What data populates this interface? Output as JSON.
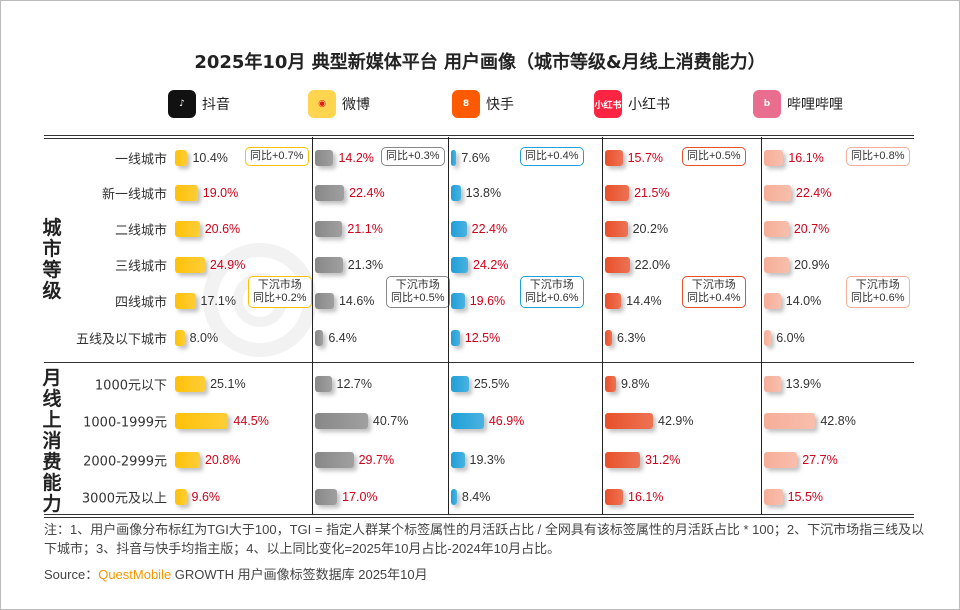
{
  "title": "2025年10月 典型新媒体平台 用户画像（城市等级&月线上消费能力）",
  "watermark": "QUESTMOBILE",
  "chart_data": {
    "type": "bar",
    "orientation": "horizontal",
    "unit": "%",
    "groups": [
      {
        "label": "城市等级",
        "categories": [
          "一线城市",
          "新一线城市",
          "二线城市",
          "三线城市",
          "四线城市",
          "五线及以下城市"
        ]
      },
      {
        "label": "月线上消费能力",
        "categories": [
          "1000元以下",
          "1000-1999元",
          "2000-2999元",
          "3000元及以上"
        ]
      }
    ],
    "series": [
      {
        "name": "抖音",
        "color": "#FFC107",
        "logo": "tiktok-icon",
        "values": [
          10.4,
          19.0,
          20.6,
          24.9,
          17.1,
          8.0,
          25.1,
          44.5,
          20.8,
          9.6
        ],
        "tgi_high": [
          false,
          true,
          true,
          true,
          false,
          false,
          false,
          true,
          true,
          true
        ],
        "yoy_tier1": "同比+0.7%",
        "yoy_lower": [
          "下沉市场",
          "同比+0.2%"
        ]
      },
      {
        "name": "微博",
        "color": "#888888",
        "logo": "weibo-icon",
        "values": [
          14.2,
          22.4,
          21.1,
          21.3,
          14.6,
          6.4,
          12.7,
          40.7,
          29.7,
          17.0
        ],
        "tgi_high": [
          true,
          true,
          true,
          false,
          false,
          false,
          false,
          false,
          true,
          true
        ],
        "yoy_tier1": "同比+0.3%",
        "yoy_lower": [
          "下沉市场",
          "同比+0.5%"
        ]
      },
      {
        "name": "快手",
        "color": "#1E9FD8",
        "logo": "kuaishou-icon",
        "values": [
          7.6,
          13.8,
          22.4,
          24.2,
          19.6,
          12.5,
          25.5,
          46.9,
          19.3,
          8.4
        ],
        "tgi_high": [
          false,
          false,
          true,
          true,
          true,
          true,
          false,
          true,
          false,
          false
        ],
        "yoy_tier1": "同比+0.4%",
        "yoy_lower": [
          "下沉市场",
          "同比+0.6%"
        ]
      },
      {
        "name": "小红书",
        "color": "#E8502A",
        "logo": "xiaohongshu-icon",
        "logo_text": "小红书",
        "values": [
          15.7,
          21.5,
          20.2,
          22.0,
          14.4,
          6.3,
          9.8,
          42.9,
          31.2,
          16.1
        ],
        "tgi_high": [
          true,
          true,
          false,
          false,
          false,
          false,
          false,
          false,
          true,
          true
        ],
        "yoy_tier1": "同比+0.5%",
        "yoy_lower": [
          "下沉市场",
          "同比+0.4%"
        ]
      },
      {
        "name": "哔哩哔哩",
        "color": "#F6AE98",
        "logo": "bilibili-icon",
        "values": [
          16.1,
          22.4,
          20.7,
          20.9,
          14.0,
          6.0,
          13.9,
          42.8,
          27.7,
          15.5
        ],
        "tgi_high": [
          true,
          true,
          true,
          false,
          false,
          false,
          false,
          false,
          true,
          true
        ],
        "yoy_tier1": "同比+0.8%",
        "yoy_lower": [
          "下沉市场",
          "同比+0.6%"
        ]
      }
    ],
    "colors": {
      "highlight": "#D0021B",
      "normal": "#333333"
    }
  },
  "footer": {
    "note": "注：1、用户画像分布标红为TGI大于100，TGI = 指定人群某个标签属性的月活跃占比 / 全网具有该标签属性的月活跃占比 * 100；2、下沉市场指三线及以下城市；3、抖音与快手均指主版；4、以上同比变化=2025年10月占比-2024年10月占比。",
    "source_label": "Source：",
    "source_brand": "QuestMobile",
    "source_text": " GROWTH 用户画像标签数据库 2025年10月"
  }
}
